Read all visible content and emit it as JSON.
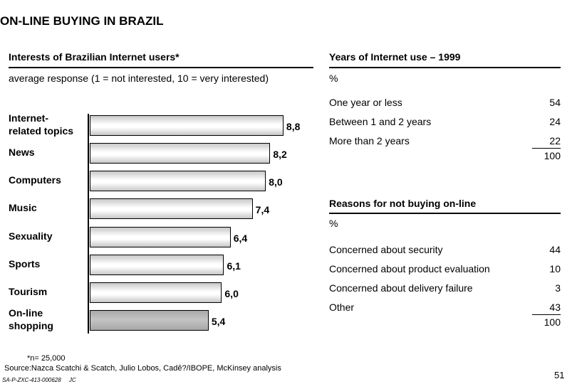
{
  "title": "ON-LINE BUYING IN BRAZIL",
  "left": {
    "header": "Interests of Brazilian Internet users*",
    "subheader": "average response (1 = not interested, 10 = very interested)"
  },
  "chart_data": {
    "type": "bar",
    "orientation": "horizontal",
    "categories": [
      "Internet-\nrelated topics",
      "News",
      "Computers",
      "Music",
      "Sexuality",
      "Sports",
      "Tourism",
      "On-line\nshopping"
    ],
    "values": [
      8.8,
      8.2,
      8.0,
      7.4,
      6.4,
      6.1,
      6.0,
      5.4
    ],
    "value_labels": [
      "8,8",
      "8,2",
      "8,0",
      "7,4",
      "6,4",
      "6,1",
      "6,0",
      "5,4"
    ],
    "highlighted": "On-line\nshopping",
    "colors": {
      "bar": "#ffffff",
      "highlight": "#b4b4b4"
    }
  },
  "years": {
    "header": "Years of Internet use – 1999",
    "unit": "%",
    "rows": [
      {
        "label": "One year or less",
        "value": "54"
      },
      {
        "label": "Between 1 and 2 years",
        "value": "24"
      },
      {
        "label": "More than 2 years",
        "value": "22"
      }
    ],
    "total": "100"
  },
  "reasons": {
    "header": "Reasons for not buying on-line",
    "unit": "%",
    "rows": [
      {
        "label": "Concerned about security",
        "value": "44"
      },
      {
        "label": "Concerned about product evaluation",
        "value": "10"
      },
      {
        "label": "Concerned about delivery failure",
        "value": "3"
      },
      {
        "label": "Other",
        "value": "43"
      }
    ],
    "total": "100"
  },
  "footer": {
    "note": "*n= 25,000",
    "source": "Source:Nazca Scatchi & Scatch, Julio Lobos, Cadê?/IBOPE, McKinsey analysis",
    "code": "SA-P-ZXC-413-000628     JC",
    "page": "51"
  }
}
